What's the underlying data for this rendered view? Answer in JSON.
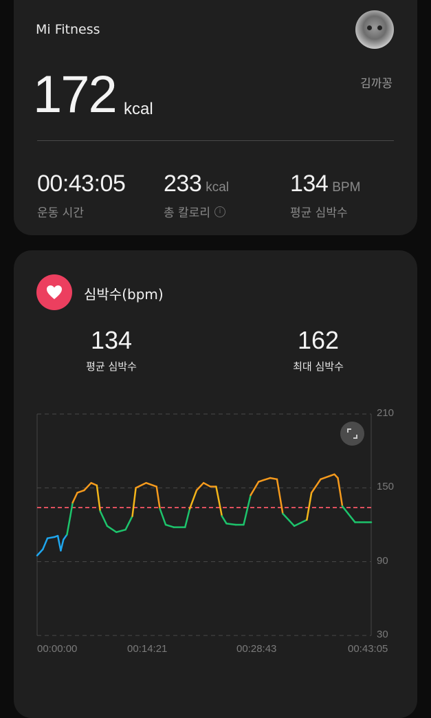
{
  "summary": {
    "app_title": "Mi Fitness",
    "user_name": "김까꽁",
    "calories_value": "172",
    "calories_unit": "kcal",
    "stats": [
      {
        "value": "00:43:05",
        "unit": "",
        "label": "운동 시간"
      },
      {
        "value": "233",
        "unit": "kcal",
        "label": "총 칼로리",
        "icon": "info-icon"
      },
      {
        "value": "134",
        "unit": "BPM",
        "label": "평균 심박수"
      }
    ]
  },
  "heart_rate": {
    "title": "심박수(bpm)",
    "icon": "heart-icon",
    "accent": "#ec3f5f",
    "avg_value": "134",
    "avg_label": "평균 심박수",
    "max_value": "162",
    "max_label": "최대 심박수",
    "expand_icon": "expand-icon"
  },
  "chart_data": {
    "type": "line",
    "ylim": [
      30,
      210
    ],
    "yticks": [
      "210",
      "150",
      "90",
      "30"
    ],
    "xticks": [
      "00:00:00",
      "00:14:21",
      "00:28:43",
      "00:43:05"
    ],
    "xlim": [
      "00:00:00",
      "00:43:05"
    ],
    "grid": true,
    "average_line": {
      "value": 134,
      "color": "#e0505e"
    },
    "zone_colors": {
      "low": "#1fa6ee",
      "moderate": "#1dc46c",
      "high_start": "#f3b51a",
      "high": "#f59a1d"
    },
    "series": [
      {
        "x": [
          "00:00:00",
          "00:00:44",
          "00:01:20",
          "00:02:13",
          "00:02:40",
          "00:03:03",
          "00:03:24",
          "00:03:51",
          "00:04:17",
          "00:04:35",
          "00:05:11",
          "00:06:04",
          "00:06:58",
          "00:07:42",
          "00:08:08",
          "00:09:02",
          "00:10:13",
          "00:11:24",
          "00:12:17",
          "00:12:44",
          "00:14:04",
          "00:15:24",
          "00:15:50",
          "00:16:35",
          "00:17:37",
          "00:19:05",
          "00:19:41",
          "00:20:34",
          "00:21:28",
          "00:22:21",
          "00:23:05",
          "00:23:50",
          "00:24:25",
          "00:25:37",
          "00:26:38",
          "00:27:32",
          "00:28:34",
          "00:30:03",
          "00:30:56",
          "00:31:41",
          "00:33:10",
          "00:34:47",
          "00:35:23",
          "00:36:34",
          "00:38:20",
          "00:38:47",
          "00:39:22",
          "00:40:07",
          "00:41:00",
          "00:41:35",
          "00:43:05"
        ],
        "y": [
          95,
          100,
          109,
          110,
          111,
          99,
          108,
          112,
          127,
          138,
          146,
          148,
          154,
          152,
          131,
          119,
          114,
          116,
          127,
          150,
          154,
          151,
          133,
          120,
          118,
          118,
          133,
          148,
          154,
          151,
          151,
          127,
          121,
          120,
          120,
          144,
          155,
          158,
          157,
          129,
          119,
          124,
          146,
          157,
          161,
          158,
          135,
          129,
          122,
          122,
          122
        ]
      }
    ]
  }
}
